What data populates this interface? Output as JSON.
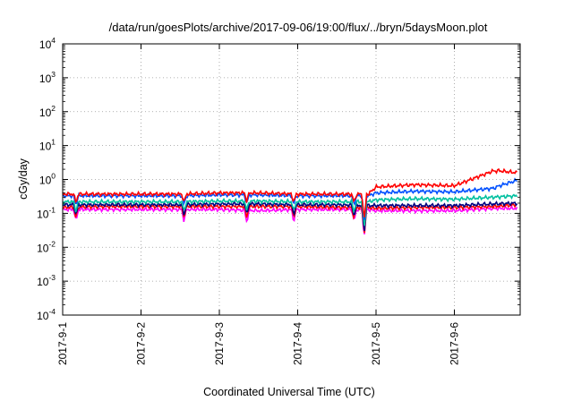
{
  "chart_data": {
    "type": "line",
    "title": "/data/run/goesPlots/archive/2017-09-06/19:00/flux/../bryn/5daysMoon.plot",
    "xlabel": "Coordinated Universal Time (UTC)",
    "ylabel": "cGy/day",
    "yscale": "log",
    "ylim": [
      0.0001,
      10000
    ],
    "xlim": [
      "2017-09-01",
      "2017-09-06 19:00"
    ],
    "y_ticks": [
      {
        "value": 0.0001,
        "base": "10",
        "exp": "-4"
      },
      {
        "value": 0.001,
        "base": "10",
        "exp": "-3"
      },
      {
        "value": 0.01,
        "base": "10",
        "exp": "-2"
      },
      {
        "value": 0.1,
        "base": "10",
        "exp": "-1"
      },
      {
        "value": 1,
        "base": "10",
        "exp": "0"
      },
      {
        "value": 10,
        "base": "10",
        "exp": "1"
      },
      {
        "value": 100,
        "base": "10",
        "exp": "2"
      },
      {
        "value": 1000,
        "base": "10",
        "exp": "3"
      },
      {
        "value": 10000,
        "base": "10",
        "exp": "4"
      }
    ],
    "x_ticks": [
      "2017-9-1",
      "2017-9-2",
      "2017-9-3",
      "2017-9-4",
      "2017-9-5",
      "2017-9-6"
    ],
    "grid": true,
    "legend": "none",
    "series": [
      {
        "color": "#ff00ff",
        "x": [
          0,
          0.5,
          1,
          1.5,
          2,
          2.5,
          3,
          3.5,
          3.9,
          4.0,
          4.5,
          5,
          5.5,
          5.8
        ],
        "y": [
          0.13,
          0.13,
          0.13,
          0.13,
          0.13,
          0.12,
          0.13,
          0.13,
          0.13,
          0.12,
          0.12,
          0.12,
          0.14,
          0.14
        ]
      },
      {
        "color": "#ff0000",
        "x": [
          0,
          0.5,
          1,
          1.5,
          2,
          2.5,
          3,
          3.5,
          3.9,
          4.0,
          4.5,
          5,
          5.5,
          5.8
        ],
        "y": [
          0.15,
          0.16,
          0.16,
          0.16,
          0.16,
          0.16,
          0.16,
          0.15,
          0.15,
          0.14,
          0.15,
          0.15,
          0.16,
          0.18
        ]
      },
      {
        "color": "#000080",
        "x": [
          0,
          0.5,
          1,
          1.5,
          2,
          2.5,
          3,
          3.5,
          3.9,
          4.0,
          4.5,
          5,
          5.5,
          5.8
        ],
        "y": [
          0.18,
          0.18,
          0.18,
          0.18,
          0.19,
          0.19,
          0.18,
          0.18,
          0.17,
          0.17,
          0.17,
          0.17,
          0.19,
          0.2
        ]
      },
      {
        "color": "#00c0a0",
        "x": [
          0,
          0.5,
          1,
          1.5,
          2,
          2.5,
          3,
          3.5,
          3.9,
          4.0,
          4.5,
          5,
          5.5,
          5.8
        ],
        "y": [
          0.22,
          0.22,
          0.22,
          0.22,
          0.23,
          0.23,
          0.22,
          0.22,
          0.22,
          0.25,
          0.27,
          0.26,
          0.3,
          0.33
        ]
      },
      {
        "color": "#0050ff",
        "x": [
          0,
          0.5,
          1,
          1.5,
          2,
          2.5,
          3,
          3.5,
          3.9,
          4.0,
          4.5,
          5,
          5.5,
          5.8
        ],
        "y": [
          0.33,
          0.33,
          0.33,
          0.33,
          0.35,
          0.35,
          0.33,
          0.33,
          0.33,
          0.4,
          0.45,
          0.43,
          0.55,
          0.9
        ]
      },
      {
        "color": "#ff0000",
        "x": [
          0,
          0.5,
          1,
          1.5,
          2,
          2.5,
          3,
          3.5,
          3.9,
          4.0,
          4.5,
          5,
          5.5,
          5.8
        ],
        "y": [
          0.37,
          0.37,
          0.37,
          0.37,
          0.4,
          0.4,
          0.37,
          0.37,
          0.37,
          0.6,
          0.7,
          0.65,
          1.8,
          1.5
        ]
      }
    ]
  }
}
